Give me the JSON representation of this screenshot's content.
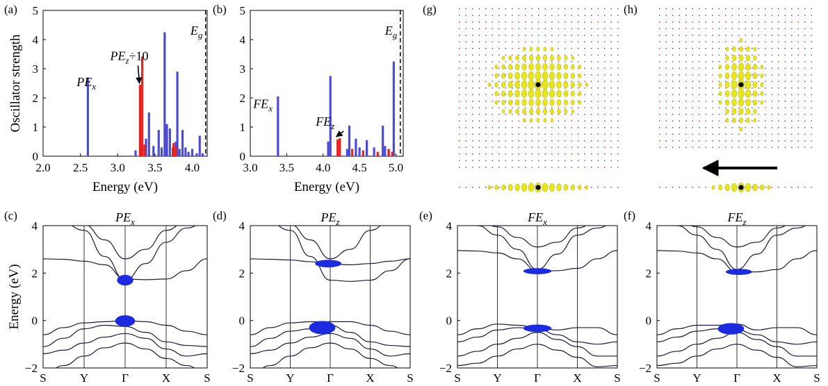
{
  "colors": {
    "pe_x": "#4b4bd6",
    "pe_z": "#e52222",
    "band": "#1a1a3a",
    "weight": "#1c2be0",
    "density": "#e6e61a",
    "hole": "#000000"
  },
  "chart_data": [
    {
      "id": "a",
      "panel_label": "(a)",
      "type": "bar",
      "ylabel": "Oscillator strength",
      "xlabel": "Energy (eV)",
      "xlim": [
        2.0,
        4.2
      ],
      "ylim": [
        0,
        5
      ],
      "xticks": [
        "2.0",
        "2.5",
        "3.0",
        "3.5",
        "4.0"
      ],
      "yticks": [
        "0",
        "1",
        "2",
        "3",
        "4",
        "5"
      ],
      "gap_label": "E_g",
      "gap_value": 4.18,
      "annotations": [
        {
          "text": "PE_x",
          "x": 2.45,
          "y": 2.4
        },
        {
          "text": "PE_z÷10",
          "x": 2.9,
          "y": 3.3,
          "arrow_to": [
            3.31,
            2.45
          ]
        }
      ],
      "series": [
        {
          "name": "PE_x",
          "color": "blue",
          "x": [
            2.6,
            3.24,
            3.31,
            3.38,
            3.42,
            3.48,
            3.55,
            3.59,
            3.63,
            3.66,
            3.7,
            3.74,
            3.78,
            3.8,
            3.83,
            3.87,
            3.91,
            3.95,
            4.0,
            4.06,
            4.1,
            4.14
          ],
          "values": [
            2.7,
            0.2,
            0.3,
            0.6,
            1.5,
            0.35,
            0.9,
            0.3,
            4.25,
            1.1,
            0.95,
            0.3,
            0.5,
            2.9,
            0.25,
            0.9,
            0.3,
            0.15,
            0.25,
            0.1,
            0.7,
            0.1
          ]
        },
        {
          "name": "PE_z",
          "color": "red",
          "x": [
            3.3,
            3.33,
            3.36,
            3.75,
            3.78
          ],
          "values": [
            2.45,
            3.42,
            0.4,
            0.45,
            0.3
          ]
        }
      ]
    },
    {
      "id": "b",
      "panel_label": "(b)",
      "type": "bar",
      "xlabel": "Energy (eV)",
      "xlim": [
        3.0,
        5.1
      ],
      "ylim": [
        0,
        5
      ],
      "xticks": [
        "3.0",
        "3.5",
        "4.0",
        "4.5",
        "5.0"
      ],
      "yticks": [
        "0",
        "1",
        "2",
        "3",
        "4",
        "5"
      ],
      "gap_label": "E_g",
      "gap_value": 5.06,
      "annotations": [
        {
          "text": "FE_x",
          "x": 3.04,
          "y": 1.65
        },
        {
          "text": "FE_z",
          "x": 3.9,
          "y": 1.05,
          "arrow_to": [
            4.2,
            0.62
          ]
        }
      ],
      "series": [
        {
          "name": "FE_x",
          "color": "blue",
          "x": [
            3.38,
            4.07,
            4.1,
            4.33,
            4.36,
            4.45,
            4.5,
            4.6,
            4.7,
            4.82,
            4.85,
            4.9,
            4.97
          ],
          "values": [
            2.05,
            0.5,
            2.75,
            0.25,
            1.05,
            0.6,
            0.3,
            0.55,
            0.3,
            1.05,
            0.35,
            0.25,
            3.25
          ]
        },
        {
          "name": "FE_z",
          "color": "red",
          "x": [
            4.2,
            4.23,
            4.4,
            4.55,
            4.75,
            4.9,
            4.95
          ],
          "values": [
            0.58,
            0.62,
            0.25,
            0.2,
            0.15,
            0.25,
            0.15
          ]
        }
      ]
    },
    {
      "id": "c",
      "panel_label": "(c)",
      "title": "PE_x",
      "type": "line",
      "ylabel": "Energy (eV)",
      "ylim": [
        -2,
        4
      ],
      "kpoints": [
        "S",
        "Y",
        "Γ",
        "X",
        "S"
      ],
      "yticks": [
        "-2",
        "0",
        "2",
        "4"
      ],
      "series": [
        {
          "x": [
            0,
            0.5,
            1,
            1.5,
            2,
            2.5,
            3,
            3.5,
            4
          ],
          "values": [
            2.6,
            2.58,
            2.5,
            2.35,
            1.75,
            1.72,
            1.75,
            2.1,
            2.6
          ]
        },
        {
          "x": [
            0,
            0.5,
            1,
            1.5,
            2,
            2.5,
            3,
            3.5,
            4
          ],
          "values": [
            4.3,
            4.1,
            3.8,
            2.7,
            1.7,
            2.4,
            3.3,
            3.9,
            4.2
          ]
        },
        {
          "x": [
            0,
            0.5,
            1,
            1.5,
            2,
            2.5,
            3,
            3.5,
            4
          ],
          "values": [
            4.6,
            4.4,
            4.05,
            3.4,
            2.6,
            3.0,
            3.8,
            4.2,
            4.5
          ]
        },
        {
          "x": [
            0,
            0.5,
            1,
            1.5,
            2,
            2.5,
            3,
            3.5,
            4
          ],
          "values": [
            -0.6,
            -0.3,
            -0.1,
            -0.05,
            0.0,
            -0.05,
            -0.2,
            -0.45,
            -0.6
          ]
        },
        {
          "x": [
            0,
            0.5,
            1,
            1.5,
            2,
            2.5,
            3,
            3.5,
            4
          ],
          "values": [
            -1.1,
            -0.75,
            -0.35,
            -0.2,
            -0.25,
            -0.5,
            -0.9,
            -1.05,
            -1.1
          ]
        },
        {
          "x": [
            0,
            0.5,
            1,
            1.5,
            2,
            2.5,
            3,
            3.5,
            4
          ],
          "values": [
            -1.4,
            -1.25,
            -0.95,
            -0.7,
            -0.55,
            -0.75,
            -1.2,
            -1.5,
            -1.4
          ]
        },
        {
          "x": [
            0,
            0.5,
            1,
            1.5,
            2,
            2.5,
            3,
            3.5,
            4
          ],
          "values": [
            -2.3,
            -1.9,
            -1.5,
            -1.15,
            -0.95,
            -1.2,
            -1.6,
            -1.9,
            -2.3
          ]
        }
      ],
      "weights": [
        {
          "x": 2,
          "y": 1.7,
          "w": 0.18,
          "h": 0.28
        },
        {
          "x": 2,
          "y": -0.02,
          "w": 0.22,
          "h": 0.3
        }
      ]
    },
    {
      "id": "d",
      "panel_label": "(d)",
      "title": "PE_z",
      "type": "line",
      "ylim": [
        -2,
        4
      ],
      "kpoints": [
        "S",
        "Y",
        "Γ",
        "X",
        "S"
      ],
      "yticks": [
        "-2",
        "0",
        "2",
        "4"
      ],
      "series": [
        {
          "x": [
            0,
            0.5,
            1,
            1.5,
            2,
            2.5,
            3,
            3.5,
            4
          ],
          "values": [
            2.6,
            2.58,
            2.55,
            2.48,
            2.38,
            2.35,
            2.4,
            2.5,
            2.6
          ]
        },
        {
          "x": [
            0,
            0.5,
            1,
            1.5,
            2,
            2.5,
            3,
            3.5,
            4
          ],
          "values": [
            4.3,
            4.1,
            3.8,
            2.7,
            1.7,
            1.65,
            1.7,
            2.1,
            2.6
          ]
        },
        {
          "x": [
            0,
            0.5,
            1,
            1.5,
            2,
            2.5,
            3,
            3.5,
            4
          ],
          "values": [
            4.6,
            4.4,
            4.05,
            3.4,
            2.6,
            3.0,
            3.8,
            4.2,
            4.5
          ]
        },
        {
          "x": [
            0,
            0.5,
            1,
            1.5,
            2,
            2.5,
            3,
            3.5,
            4
          ],
          "values": [
            -0.6,
            -0.3,
            -0.1,
            -0.05,
            -0.05,
            -0.05,
            -0.2,
            -0.45,
            -0.6
          ]
        },
        {
          "x": [
            0,
            0.5,
            1,
            1.5,
            2,
            2.5,
            3,
            3.5,
            4
          ],
          "values": [
            -1.1,
            -0.75,
            -0.45,
            -0.35,
            -0.2,
            -0.5,
            -0.9,
            -1.05,
            -1.1
          ]
        },
        {
          "x": [
            0,
            0.5,
            1,
            1.5,
            2,
            2.5,
            3,
            3.5,
            4
          ],
          "values": [
            -1.4,
            -1.25,
            -0.95,
            -0.7,
            -0.55,
            -0.75,
            -1.2,
            -1.5,
            -1.4
          ]
        },
        {
          "x": [
            0,
            0.5,
            1,
            1.5,
            2,
            2.5,
            3,
            3.5,
            4
          ],
          "values": [
            -2.3,
            -1.9,
            -1.5,
            -1.15,
            -0.95,
            -1.2,
            -1.6,
            -1.9,
            -2.3
          ]
        }
      ],
      "weights": [
        {
          "x": 1.95,
          "y": 2.4,
          "w": 0.3,
          "h": 0.2
        },
        {
          "x": 1.8,
          "y": -0.3,
          "w": 0.3,
          "h": 0.35
        }
      ]
    },
    {
      "id": "e",
      "panel_label": "(e)",
      "title": "FE_x",
      "type": "line",
      "ylim": [
        -2,
        4
      ],
      "kpoints": [
        "S",
        "Y",
        "Γ",
        "X",
        "S"
      ],
      "yticks": [
        "-2",
        "0",
        "2",
        "4"
      ],
      "series": [
        {
          "x": [
            0,
            0.5,
            1,
            1.5,
            2,
            2.5,
            3,
            3.5,
            4
          ],
          "values": [
            2.95,
            2.93,
            2.85,
            2.6,
            2.1,
            2.1,
            2.2,
            2.6,
            2.95
          ]
        },
        {
          "x": [
            0,
            0.5,
            1,
            1.5,
            2,
            2.5,
            3,
            3.5,
            4
          ],
          "values": [
            4.3,
            4.0,
            3.6,
            3.0,
            2.15,
            2.8,
            3.6,
            3.9,
            4.2
          ]
        },
        {
          "x": [
            0,
            0.5,
            1,
            1.5,
            2,
            2.5,
            3,
            3.5,
            4
          ],
          "values": [
            4.6,
            4.3,
            3.95,
            3.5,
            3.1,
            3.3,
            3.9,
            4.2,
            4.5
          ]
        },
        {
          "x": [
            0,
            0.5,
            1,
            1.5,
            2,
            2.5,
            3,
            3.5,
            4
          ],
          "values": [
            -0.6,
            -0.35,
            -0.15,
            -0.2,
            -0.3,
            -0.4,
            -0.3,
            -0.3,
            -0.6
          ]
        },
        {
          "x": [
            0,
            0.5,
            1,
            1.5,
            2,
            2.5,
            3,
            3.5,
            4
          ],
          "values": [
            -0.9,
            -0.7,
            -0.4,
            -0.3,
            -0.35,
            -0.6,
            -0.9,
            -1.0,
            -0.9
          ]
        },
        {
          "x": [
            0,
            0.5,
            1,
            1.5,
            2,
            2.5,
            3,
            3.5,
            4
          ],
          "values": [
            -1.5,
            -1.3,
            -1.0,
            -0.75,
            -0.5,
            -0.8,
            -1.1,
            -1.5,
            -1.5
          ]
        },
        {
          "x": [
            0,
            0.5,
            1,
            1.5,
            2,
            2.5,
            3,
            3.5,
            4
          ],
          "values": [
            -1.9,
            -1.8,
            -1.5,
            -1.2,
            -1.0,
            -1.25,
            -1.55,
            -1.95,
            -1.9
          ]
        }
      ],
      "weights": [
        {
          "x": 2.0,
          "y": 2.08,
          "w": 0.32,
          "h": 0.16
        },
        {
          "x": 2.0,
          "y": -0.33,
          "w": 0.32,
          "h": 0.2
        }
      ]
    },
    {
      "id": "f",
      "panel_label": "(f)",
      "title": "FE_z",
      "type": "line",
      "ylim": [
        -2,
        4
      ],
      "kpoints": [
        "S",
        "Y",
        "Γ",
        "X",
        "S"
      ],
      "yticks": [
        "-2",
        "0",
        "2",
        "4"
      ],
      "series": [
        {
          "x": [
            0,
            0.5,
            1,
            1.5,
            2,
            2.5,
            3,
            3.5,
            4
          ],
          "values": [
            2.95,
            2.93,
            2.85,
            2.6,
            2.05,
            2.05,
            2.15,
            2.6,
            2.95
          ]
        },
        {
          "x": [
            0,
            0.5,
            1,
            1.5,
            2,
            2.5,
            3,
            3.5,
            4
          ],
          "values": [
            4.3,
            4.0,
            3.6,
            3.0,
            2.15,
            2.8,
            3.6,
            3.9,
            4.2
          ]
        },
        {
          "x": [
            0,
            0.5,
            1,
            1.5,
            2,
            2.5,
            3,
            3.5,
            4
          ],
          "values": [
            4.6,
            4.3,
            3.95,
            3.5,
            3.1,
            3.3,
            3.9,
            4.2,
            4.5
          ]
        },
        {
          "x": [
            0,
            0.5,
            1,
            1.5,
            2,
            2.5,
            3,
            3.5,
            4
          ],
          "values": [
            -0.6,
            -0.35,
            -0.2,
            -0.2,
            -0.15,
            -0.4,
            -0.3,
            -0.3,
            -0.6
          ]
        },
        {
          "x": [
            0,
            0.5,
            1,
            1.5,
            2,
            2.5,
            3,
            3.5,
            4
          ],
          "values": [
            -0.9,
            -0.7,
            -0.45,
            -0.35,
            -0.4,
            -0.6,
            -0.9,
            -1.0,
            -0.9
          ]
        },
        {
          "x": [
            0,
            0.5,
            1,
            1.5,
            2,
            2.5,
            3,
            3.5,
            4
          ],
          "values": [
            -1.5,
            -1.3,
            -1.0,
            -0.75,
            -0.5,
            -0.8,
            -1.1,
            -1.5,
            -1.5
          ]
        },
        {
          "x": [
            0,
            0.5,
            1,
            1.5,
            2,
            2.5,
            3,
            3.5,
            4
          ],
          "values": [
            -1.9,
            -1.8,
            -1.5,
            -1.2,
            -1.0,
            -1.25,
            -1.55,
            -1.95,
            -1.9
          ]
        }
      ],
      "weights": [
        {
          "x": 2.05,
          "y": 2.05,
          "w": 0.3,
          "h": 0.16
        },
        {
          "x": 1.85,
          "y": -0.35,
          "w": 0.3,
          "h": 0.3
        }
      ]
    }
  ],
  "density_panels": [
    {
      "id": "g",
      "panel_label": "(g)",
      "extent_x": 7,
      "extent_y": 4,
      "side_extent": 7
    },
    {
      "id": "h",
      "panel_label": "(h)",
      "extent_x": 3,
      "extent_y": 5,
      "side_extent": 4,
      "arrow": "left"
    }
  ]
}
